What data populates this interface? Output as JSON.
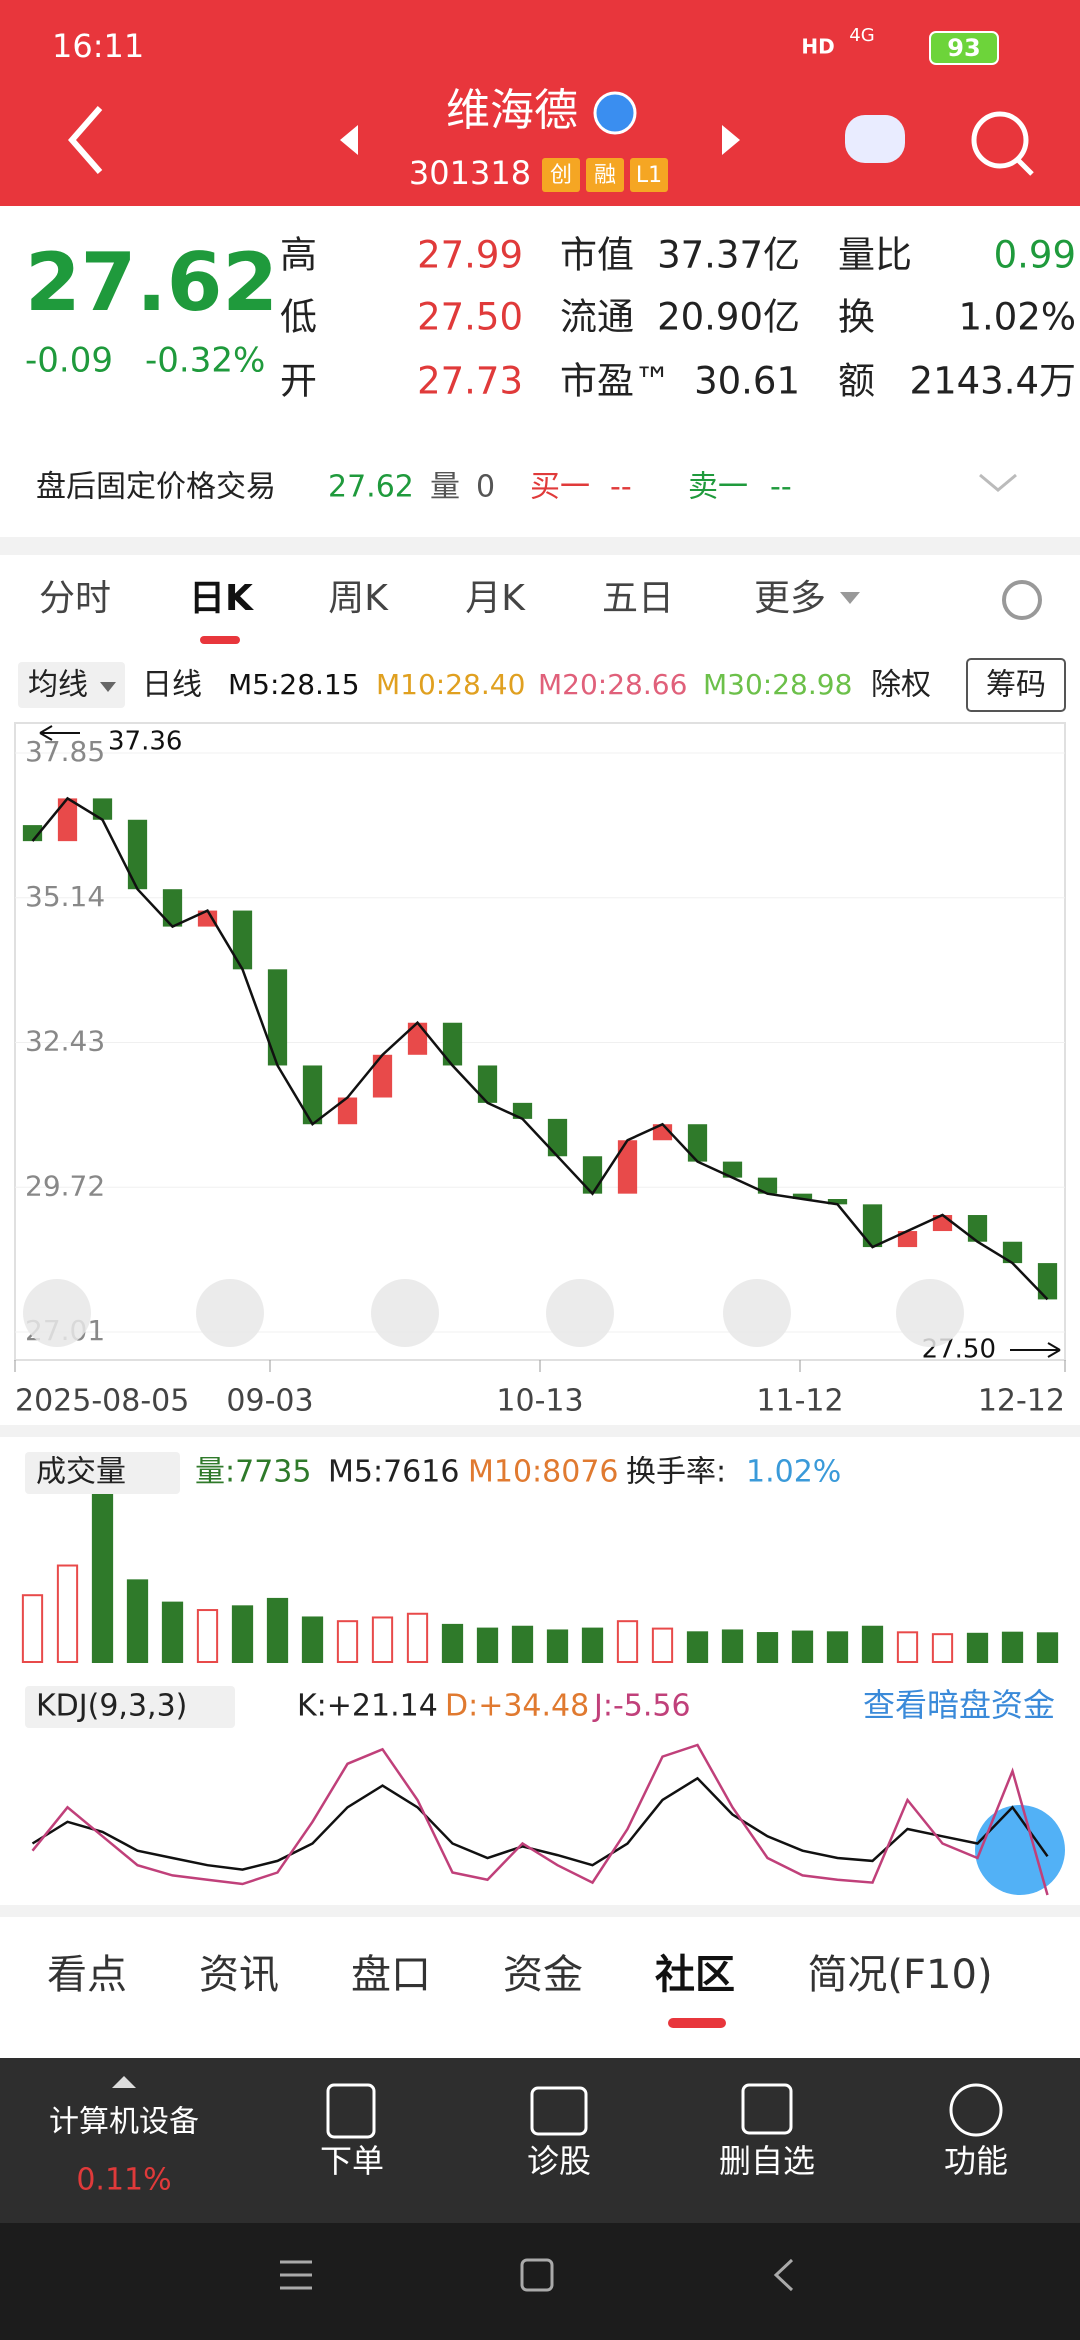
{
  "status": {
    "time": "16:11",
    "hd": "HD",
    "network": "4G",
    "battery": "93"
  },
  "header": {
    "name": "维海德",
    "code": "301318",
    "tags": [
      "创",
      "融",
      "L1"
    ]
  },
  "quote": {
    "price": "27.62",
    "change": "-0.09",
    "pct": "-0.32%",
    "stats": [
      [
        "高",
        "27.99"
      ],
      [
        "低",
        "27.50"
      ],
      [
        "开",
        "27.73"
      ],
      [
        "市值",
        "37.37亿"
      ],
      [
        "流通",
        "20.90亿"
      ],
      [
        "市盈™",
        "30.61"
      ],
      [
        "量比",
        "0.99"
      ],
      [
        "换",
        "1.02%"
      ],
      [
        "额",
        "2143.4万"
      ]
    ]
  },
  "after_hours": {
    "label": "盘后固定价格交易",
    "price": "27.62",
    "vol_label": "量",
    "vol": "0",
    "buy": "买一",
    "buy_v": "--",
    "sell": "卖一",
    "sell_v": "--"
  },
  "tabs": [
    "分时",
    "日K",
    "周K",
    "月K",
    "五日",
    "更多"
  ],
  "ma_bar": {
    "selector": "均线",
    "type": "日线",
    "items": [
      "M5:28.15",
      "M10:28.40",
      "M20:28.66",
      "M30:28.98"
    ],
    "adj": "除权",
    "chip": "筹码"
  },
  "price_chart": {
    "ylim": [
      27.01,
      37.85
    ],
    "yticks": [
      37.85,
      35.14,
      32.43,
      29.72,
      27.01
    ],
    "high": "37.36",
    "low": "27.50",
    "dates": [
      "2025-08-05",
      "09-03",
      "10-13",
      "11-12",
      "12-12"
    ],
    "close": [
      36.2,
      37.0,
      36.6,
      35.3,
      34.6,
      34.9,
      33.8,
      32.0,
      30.9,
      31.4,
      32.2,
      32.8,
      32.0,
      31.3,
      31.0,
      30.3,
      29.6,
      30.6,
      30.9,
      30.2,
      29.9,
      29.6,
      29.5,
      29.4,
      28.6,
      28.9,
      29.2,
      28.7,
      28.3,
      27.62
    ]
  },
  "volume": {
    "selector": "成交量",
    "items": [
      "量:7735",
      "M5:7616",
      "M10:8076"
    ],
    "turnover_label": "换手率:",
    "turnover": "1.02%",
    "values": [
      18000,
      26000,
      45000,
      22000,
      16000,
      14000,
      15000,
      17000,
      12000,
      11000,
      12000,
      13000,
      10000,
      9000,
      9500,
      8500,
      9000,
      11000,
      9000,
      8000,
      8500,
      7800,
      8200,
      8000,
      9500,
      8000,
      7500,
      7600,
      7900,
      7735
    ]
  },
  "kdj": {
    "selector": "KDJ(9,3,3)",
    "k_label": "K:+21.14",
    "d_label": "D:+34.48",
    "j_label": "J:-5.56",
    "link": "查看暗盘资金",
    "K": [
      30,
      45,
      38,
      25,
      20,
      15,
      12,
      18,
      30,
      55,
      70,
      55,
      30,
      20,
      28,
      22,
      15,
      30,
      60,
      75,
      50,
      35,
      25,
      20,
      18,
      40,
      35,
      30,
      55,
      21.14
    ],
    "J": [
      25,
      55,
      35,
      15,
      8,
      5,
      2,
      10,
      45,
      85,
      95,
      60,
      10,
      5,
      30,
      15,
      3,
      40,
      90,
      98,
      55,
      20,
      8,
      5,
      3,
      60,
      30,
      20,
      80,
      -5.56
    ]
  },
  "bottom_tabs": [
    "看点",
    "资讯",
    "盘口",
    "资金",
    "社区",
    "简况(F10)"
  ],
  "nav": {
    "sector": "计算机设备",
    "sector_pct": "0.11%",
    "items": [
      "下单",
      "诊股",
      "删自选",
      "功能"
    ]
  }
}
